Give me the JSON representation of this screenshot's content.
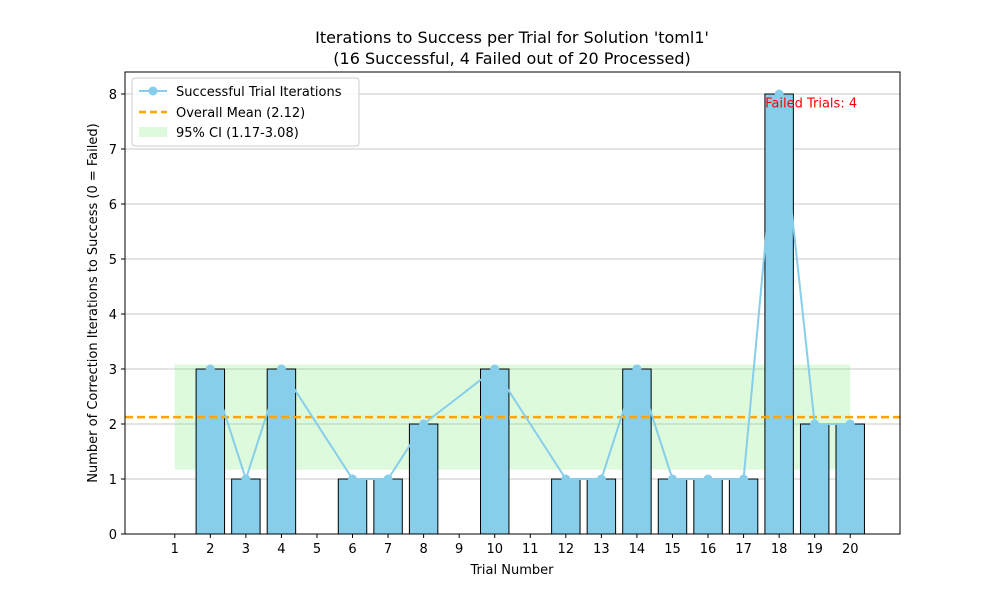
{
  "chart_data": {
    "type": "bar",
    "title": "Iterations to Success per Trial for Solution 'toml1'",
    "subtitle": "(16 Successful, 4 Failed out of 20 Processed)",
    "xlabel": "Trial Number",
    "ylabel": "Number of Correction Iterations to Success (0 = Failed)",
    "categories": [
      "1",
      "2",
      "3",
      "4",
      "5",
      "6",
      "7",
      "8",
      "9",
      "10",
      "11",
      "12",
      "13",
      "14",
      "15",
      "16",
      "17",
      "18",
      "19",
      "20"
    ],
    "x": [
      1,
      2,
      3,
      4,
      5,
      6,
      7,
      8,
      9,
      10,
      11,
      12,
      13,
      14,
      15,
      16,
      17,
      18,
      19,
      20
    ],
    "values": [
      0,
      3,
      1,
      3,
      0,
      1,
      1,
      2,
      0,
      3,
      0,
      1,
      1,
      3,
      1,
      1,
      1,
      8,
      2,
      2
    ],
    "series": [
      {
        "name": "Successful Trial Iterations",
        "type": "line",
        "x": [
          2,
          3,
          4,
          6,
          7,
          8,
          10,
          12,
          13,
          14,
          15,
          16,
          17,
          18,
          19,
          20
        ],
        "values": [
          3,
          1,
          3,
          1,
          1,
          2,
          3,
          1,
          1,
          3,
          1,
          1,
          1,
          8,
          2,
          2
        ],
        "color": "#87ceeb"
      }
    ],
    "mean": {
      "name": "Overall Mean (2.12)",
      "value": 2.125,
      "color": "#ffa500"
    },
    "ci": {
      "name": "95% CI (1.17-3.08)",
      "low": 1.17,
      "high": 3.08,
      "x_start": 1,
      "x_end": 20,
      "color": "#90ee90"
    },
    "annotation": {
      "text": "Failed Trials: 4",
      "x": 18,
      "y": 7.85,
      "color": "#ff0000"
    },
    "bar_color": "#87ceeb",
    "yticks": [
      0,
      1,
      2,
      3,
      4,
      5,
      6,
      7,
      8
    ],
    "xlim": [
      -0.4,
      21.4
    ],
    "ylim": [
      0,
      8.4
    ],
    "grid": "y",
    "legend_position": "top-left"
  }
}
